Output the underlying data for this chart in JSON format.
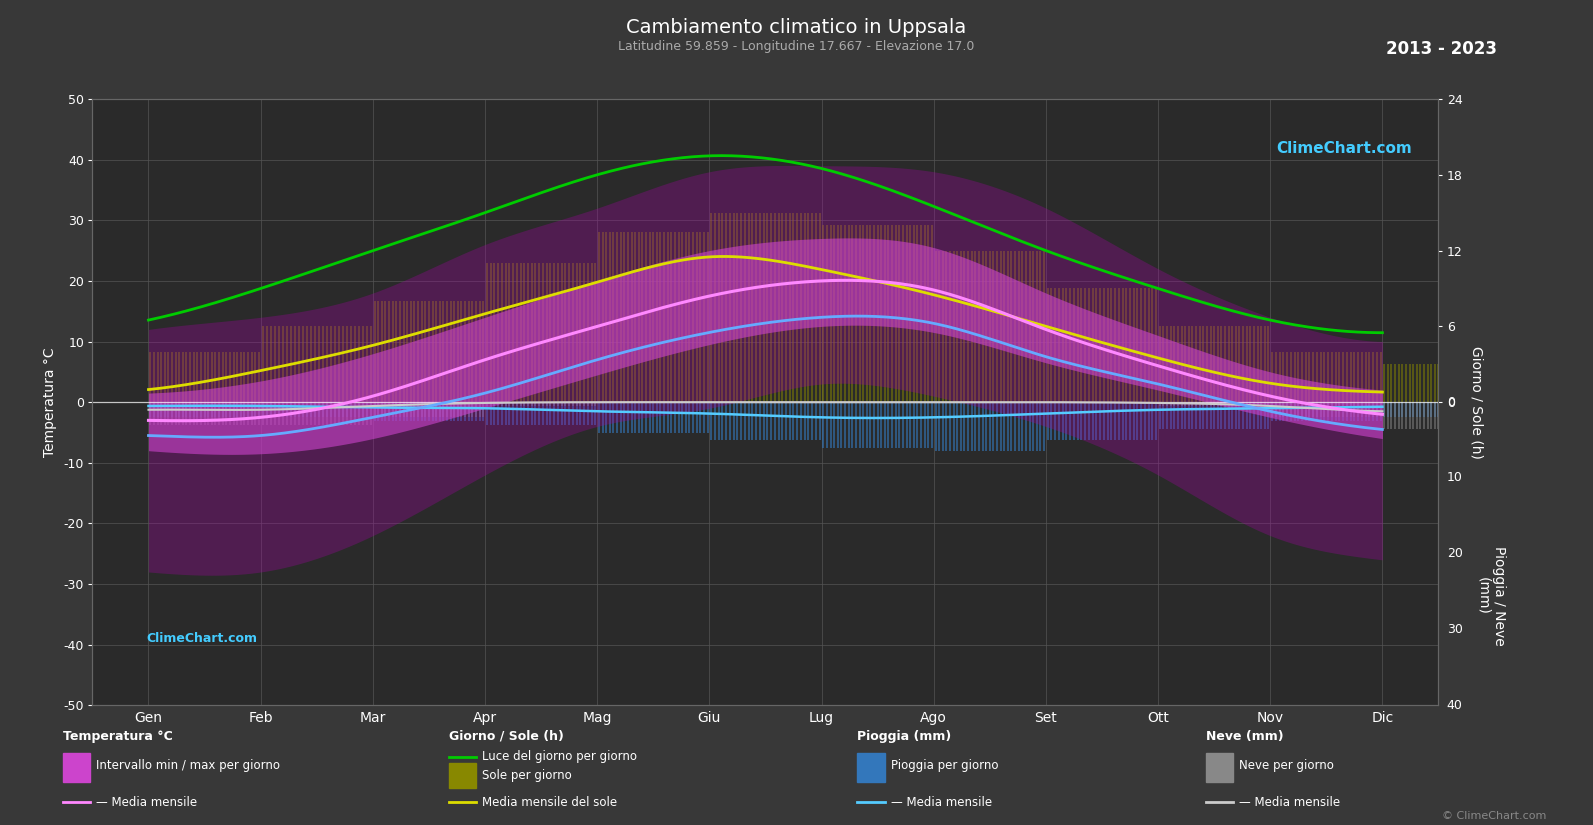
{
  "title": "Cambiamento climatico in Uppsala",
  "subtitle": "Latitudine 59.859 - Longitudine 17.667 - Elevazione 17.0",
  "year_range": "2013 - 2023",
  "bg_color": "#383838",
  "plot_bg_color": "#2a2a2a",
  "months": [
    "Gen",
    "Feb",
    "Mar",
    "Apr",
    "Mag",
    "Giu",
    "Lug",
    "Ago",
    "Set",
    "Ott",
    "Nov",
    "Dic"
  ],
  "days_per_month": [
    31,
    28,
    31,
    30,
    31,
    30,
    31,
    31,
    30,
    31,
    30,
    31
  ],
  "temp_max_daily": [
    1.5,
    3.5,
    8.0,
    14.0,
    20.0,
    25.0,
    27.0,
    25.5,
    18.0,
    11.0,
    5.0,
    2.0
  ],
  "temp_min_daily": [
    -8.0,
    -8.5,
    -6.0,
    -1.0,
    4.5,
    9.5,
    12.5,
    11.5,
    6.5,
    2.0,
    -2.5,
    -6.0
  ],
  "temp_max_extreme": [
    12.0,
    14.0,
    18.0,
    26.0,
    32.0,
    38.0,
    39.0,
    38.0,
    32.0,
    22.0,
    14.0,
    10.0
  ],
  "temp_min_extreme": [
    -28.0,
    -28.0,
    -22.0,
    -12.0,
    -4.0,
    -1.0,
    3.0,
    1.0,
    -4.0,
    -12.0,
    -22.0,
    -26.0
  ],
  "temp_mean_max": [
    -3.0,
    -2.5,
    1.0,
    7.0,
    12.5,
    17.5,
    20.0,
    18.5,
    12.0,
    6.0,
    1.0,
    -2.0
  ],
  "temp_mean_min": [
    -5.5,
    -5.5,
    -2.5,
    1.5,
    7.0,
    11.5,
    14.0,
    13.0,
    7.5,
    3.0,
    -1.5,
    -4.5
  ],
  "daylight_hours": [
    6.5,
    9.0,
    12.0,
    15.0,
    18.0,
    19.5,
    18.5,
    15.5,
    12.0,
    9.0,
    6.5,
    5.5
  ],
  "sunshine_mean": [
    1.0,
    2.5,
    4.5,
    7.0,
    9.5,
    11.5,
    10.5,
    8.5,
    6.0,
    3.5,
    1.5,
    0.8
  ],
  "sunshine_bar_max": [
    4.0,
    6.0,
    8.0,
    11.0,
    13.5,
    15.0,
    14.0,
    12.0,
    9.0,
    6.0,
    4.0,
    3.0
  ],
  "rain_bar_max": [
    2.0,
    2.0,
    2.5,
    3.0,
    4.0,
    5.0,
    6.0,
    6.5,
    5.0,
    3.5,
    2.5,
    2.0
  ],
  "rain_mean": [
    0.5,
    0.5,
    0.7,
    0.8,
    1.2,
    1.5,
    2.0,
    2.0,
    1.5,
    1.0,
    0.8,
    0.6
  ],
  "snow_bar_max": [
    3.0,
    3.0,
    2.0,
    0.5,
    0.0,
    0.0,
    0.0,
    0.0,
    0.0,
    0.5,
    2.0,
    3.5
  ],
  "snow_mean": [
    1.0,
    1.0,
    0.5,
    0.1,
    0.0,
    0.0,
    0.0,
    0.0,
    0.0,
    0.1,
    0.5,
    1.2
  ],
  "temp_ylim": [
    -50,
    50
  ],
  "sun_ylim": [
    0,
    24
  ],
  "rain_ylim": [
    0,
    40
  ]
}
